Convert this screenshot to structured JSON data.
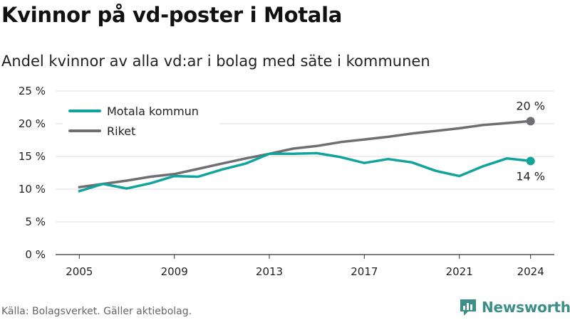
{
  "header": {
    "title": "Kvinnor på vd-poster i Motala",
    "subtitle": "Andel kvinnor av alla vd:ar i bolag med säte i kommunen"
  },
  "footer": {
    "source": "Källa: Bolagsverket. Gäller aktiebolag.",
    "brand": "Newsworthy"
  },
  "colors": {
    "motala": "#12a39b",
    "riket": "#6f6e73",
    "grid": "#dddddd",
    "axis": "#333333",
    "brand": "#3c8f87"
  },
  "icons": {
    "brand_logo": "newsworthy-logo-icon"
  },
  "chart_data": {
    "type": "line",
    "x": [
      2005,
      2006,
      2007,
      2008,
      2009,
      2010,
      2011,
      2012,
      2013,
      2014,
      2015,
      2016,
      2017,
      2018,
      2019,
      2020,
      2021,
      2022,
      2023,
      2024
    ],
    "series": [
      {
        "name": "Motala kommun",
        "color": "#12a39b",
        "values": [
          9.7,
          10.8,
          10.1,
          10.9,
          12.0,
          11.9,
          13.0,
          13.9,
          15.4,
          15.4,
          15.5,
          14.9,
          14.0,
          14.6,
          14.1,
          12.8,
          12.0,
          13.5,
          14.7,
          14.3
        ],
        "end_label": "14 %"
      },
      {
        "name": "Riket",
        "color": "#6f6e73",
        "values": [
          10.3,
          10.8,
          11.3,
          11.9,
          12.3,
          13.1,
          13.9,
          14.7,
          15.4,
          16.2,
          16.6,
          17.2,
          17.6,
          18.0,
          18.5,
          18.9,
          19.3,
          19.8,
          20.1,
          20.4
        ],
        "end_label": "20 %"
      }
    ],
    "x_ticks": [
      "2005",
      "2009",
      "2013",
      "2017",
      "2021",
      "2024"
    ],
    "x_tick_values": [
      2005,
      2009,
      2013,
      2017,
      2021,
      2024
    ],
    "y_ticks": [
      "0 %",
      "5 %",
      "10 %",
      "15 %",
      "20 %",
      "25 %"
    ],
    "y_tick_values": [
      0,
      5,
      10,
      15,
      20,
      25
    ],
    "xlim": [
      2004,
      2025
    ],
    "ylim": [
      0,
      25
    ],
    "grid": "horizontal",
    "legend_position": "top-left"
  }
}
